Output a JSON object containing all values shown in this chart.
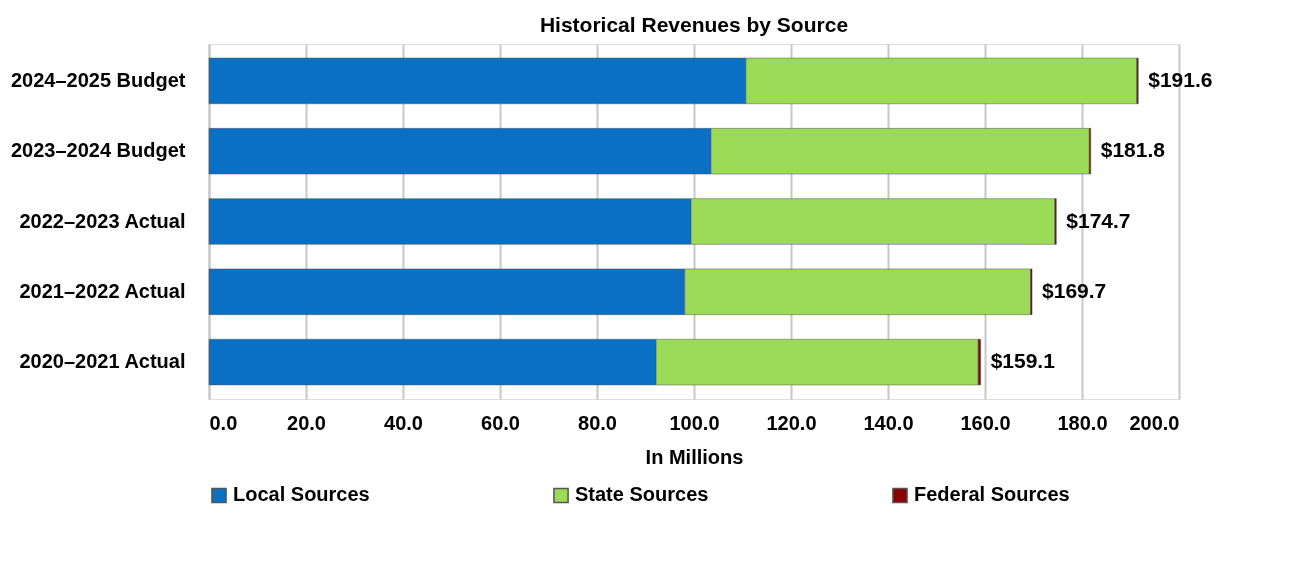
{
  "chart_data": {
    "type": "bar",
    "orientation": "horizontal",
    "stacked": true,
    "title": "Historical Revenues by Source",
    "xlabel": "In Millions",
    "categories": [
      "2024–2025 Budget",
      "2023–2024 Budget",
      "2022–2023 Actual",
      "2021–2022 Actual",
      "2020–2021 Actual"
    ],
    "series": [
      {
        "name": "Local Sources",
        "color": "#0a70c4",
        "values": [
          110.7,
          103.5,
          99.4,
          98.1,
          92.2
        ]
      },
      {
        "name": "State Sources",
        "color": "#9bdb57",
        "values": [
          80.6,
          78.0,
          75.0,
          71.3,
          66.4
        ]
      },
      {
        "name": "Federal Sources",
        "color": "#8b0000",
        "values": [
          0.3,
          0.3,
          0.3,
          0.3,
          0.5
        ]
      }
    ],
    "totals": [
      "$191.6",
      "$181.8",
      "$174.7",
      "$169.7",
      "$159.1"
    ],
    "xlim": [
      0,
      200
    ],
    "xticks": [
      {
        "value": 0,
        "label": "0.0"
      },
      {
        "value": 20,
        "label": "20.0"
      },
      {
        "value": 40,
        "label": "40.0"
      },
      {
        "value": 60,
        "label": "60.0"
      },
      {
        "value": 80,
        "label": "80.0"
      },
      {
        "value": 100,
        "label": "100.0"
      },
      {
        "value": 120,
        "label": "120.0"
      },
      {
        "value": 140,
        "label": "140.0"
      },
      {
        "value": 160,
        "label": "160.0"
      },
      {
        "value": 180,
        "label": "180.0"
      },
      {
        "value": 200,
        "label": "200.0"
      }
    ],
    "grid": "x",
    "legend": "bottom"
  }
}
